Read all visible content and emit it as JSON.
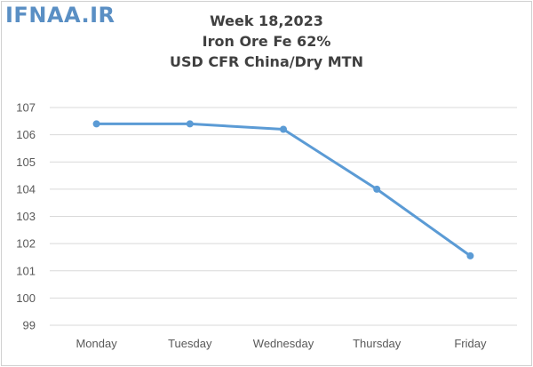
{
  "watermark": "IFNAA.IR",
  "chart_data": {
    "type": "line",
    "title_lines": [
      "Week 18,2023",
      "Iron Ore Fe 62%",
      "USD CFR China/Dry MTN"
    ],
    "categories": [
      "Monday",
      "Tuesday",
      "Wednesday",
      "Thursday",
      "Friday"
    ],
    "series": [
      {
        "values": [
          106.4,
          106.4,
          106.2,
          104.0,
          101.55
        ]
      }
    ],
    "ylim": [
      99,
      107
    ],
    "yticks": [
      99,
      100,
      101,
      102,
      103,
      104,
      105,
      106,
      107
    ],
    "grid": true,
    "legend": "none",
    "colors": {
      "line": "#5b9bd5",
      "grid": "#d9d9d9",
      "tick_text": "#595959"
    }
  }
}
